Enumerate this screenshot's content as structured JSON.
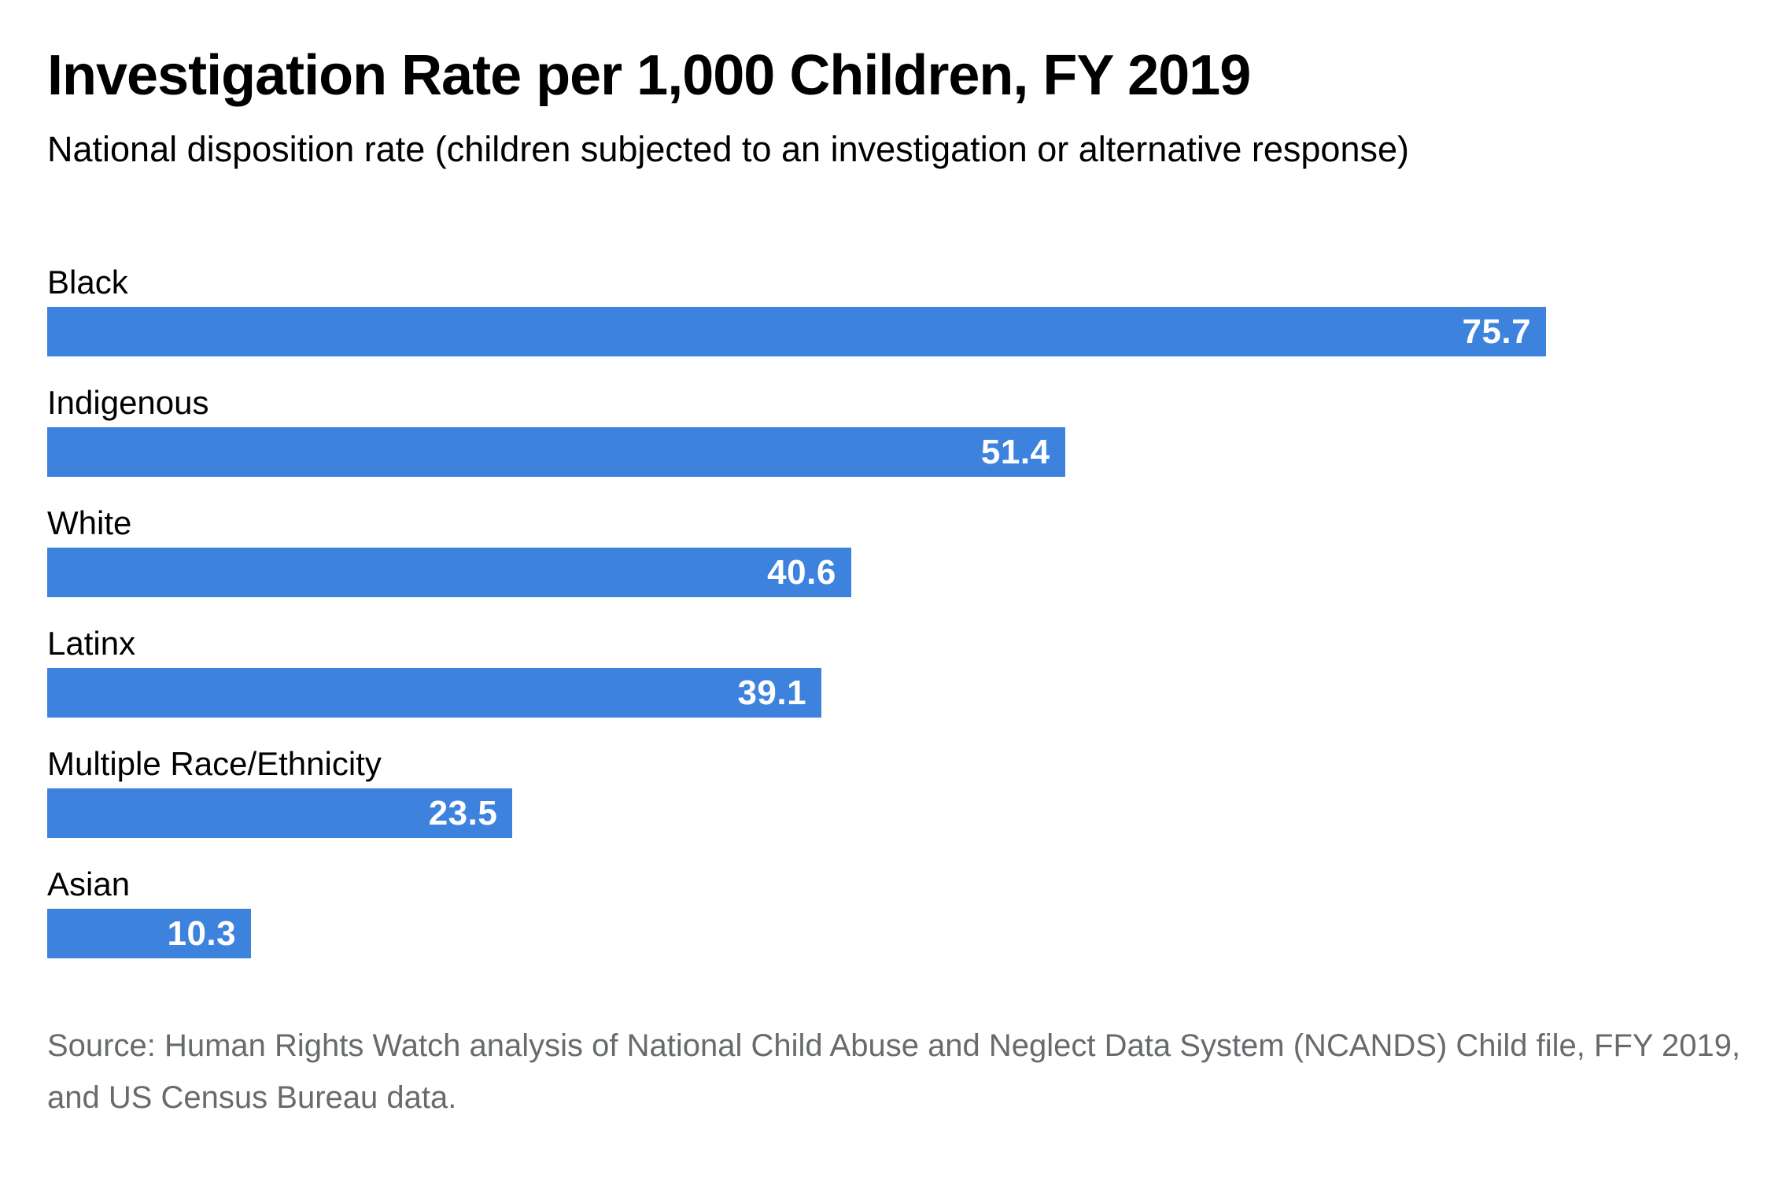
{
  "header": {
    "title": "Investigation Rate per 1,000 Children, FY 2019",
    "subtitle": "National disposition rate (children subjected to an investigation or alternative response)"
  },
  "chart_data": {
    "type": "bar",
    "orientation": "horizontal",
    "title": "Investigation Rate per 1,000 Children, FY 2019",
    "subtitle": "National disposition rate (children subjected to an investigation or alternative response)",
    "categories": [
      "Black",
      "Indigenous",
      "White",
      "Latinx",
      "Multiple Race/Ethnicity",
      "Asian"
    ],
    "values": [
      75.7,
      51.4,
      40.6,
      39.1,
      23.5,
      10.3
    ],
    "xlabel": "",
    "ylabel": "",
    "xlim": [
      0,
      84.7
    ],
    "grid": false,
    "legend": false,
    "value_labels_position": "inside-end",
    "bar_color": "#3d83de",
    "value_label_color": "#ffffff",
    "category_label_color": "#000000"
  },
  "source": {
    "line1": "Source: Human Rights Watch analysis of National Child Abuse and Neglect Data System (NCANDS) Child file, FFY 2019,",
    "line2": "and US Census Bureau data.",
    "color": "#686b6d"
  }
}
